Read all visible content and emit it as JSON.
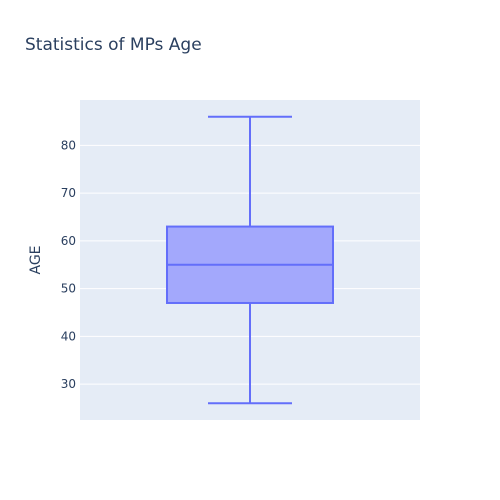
{
  "chart_data": {
    "type": "box",
    "title": "Statistics of MPs Age",
    "xlabel": "",
    "ylabel": "AGE",
    "ylim": [
      22.5,
      89.5
    ],
    "yticks": [
      30,
      40,
      50,
      60,
      70,
      80
    ],
    "grid": true,
    "box": {
      "min": 26,
      "q1": 47,
      "median": 55,
      "q3": 63,
      "max": 86
    },
    "colors": {
      "plot_bg": "#e5ecf6",
      "grid": "#ffffff",
      "box_line": "#636efa",
      "box_fill": "#a3a8fc"
    }
  }
}
